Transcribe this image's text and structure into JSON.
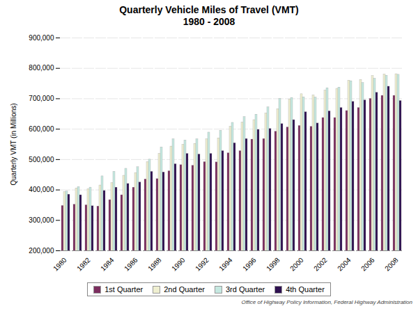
{
  "chart_data": {
    "type": "bar",
    "title": "Quarterly Vehicle Miles of Travel (VMT)",
    "subtitle": "1980 - 2008",
    "ylabel": "Quarterly VMT (in Millions)",
    "caption": "Office of Highway Policy Information, Federal Highway Administration",
    "categories": [
      "1980",
      null,
      "1982",
      null,
      "1984",
      null,
      "1986",
      null,
      "1988",
      null,
      "1990",
      null,
      "1992",
      null,
      "1994",
      null,
      "1996",
      null,
      "1998",
      null,
      "2000",
      null,
      "2002",
      null,
      "2004",
      null,
      "2006",
      null,
      "2008"
    ],
    "series": [
      {
        "name": "1st Quarter",
        "color": "#7B2D5E",
        "values": [
          348000,
          352000,
          350000,
          346000,
          367000,
          383000,
          408000,
          435000,
          436000,
          462000,
          482000,
          480000,
          492000,
          491000,
          521000,
          528000,
          566000,
          568000,
          592000,
          606000,
          611000,
          608000,
          637000,
          637000,
          660000,
          670000,
          700000,
          710000,
          710000
        ]
      },
      {
        "name": "2nd Quarter",
        "color": "#EFEFD0",
        "values": [
          393000,
          405000,
          403000,
          415000,
          423000,
          447000,
          456000,
          492000,
          519000,
          543000,
          549000,
          552000,
          567000,
          570000,
          608000,
          622000,
          630000,
          652000,
          666000,
          698000,
          715000,
          711000,
          727000,
          733000,
          760000,
          762000,
          775000,
          780000,
          781000
        ]
      },
      {
        "name": "3rd Quarter",
        "color": "#C5E8E0",
        "values": [
          395000,
          410000,
          408000,
          445000,
          460000,
          470000,
          475000,
          500000,
          540000,
          567000,
          563000,
          567000,
          589000,
          595000,
          621000,
          640000,
          648000,
          672000,
          700000,
          703000,
          705000,
          704000,
          735000,
          737000,
          758000,
          752000,
          766000,
          776000,
          779000
        ]
      },
      {
        "name": "4th Quarter",
        "color": "#2E1050",
        "values": [
          385000,
          383000,
          347000,
          397000,
          408000,
          420000,
          425000,
          460000,
          458000,
          485000,
          519000,
          517000,
          519000,
          528000,
          554000,
          568000,
          598000,
          601000,
          617000,
          630000,
          656000,
          619000,
          659000,
          670000,
          690000,
          695000,
          720000,
          740000,
          693000
        ]
      }
    ],
    "ylim": [
      200000,
      900000
    ],
    "yticks": [
      {
        "value": 200000,
        "label": "200,000"
      },
      {
        "value": 300000,
        "label": "300,000"
      },
      {
        "value": 400000,
        "label": "400,000"
      },
      {
        "value": 500000,
        "label": "500,000"
      },
      {
        "value": 600000,
        "label": "600,000"
      },
      {
        "value": 700000,
        "label": "700,000"
      },
      {
        "value": 800000,
        "label": "800,000"
      },
      {
        "value": 900000,
        "label": "900,000"
      }
    ],
    "grid": true,
    "legend": "bottom"
  }
}
